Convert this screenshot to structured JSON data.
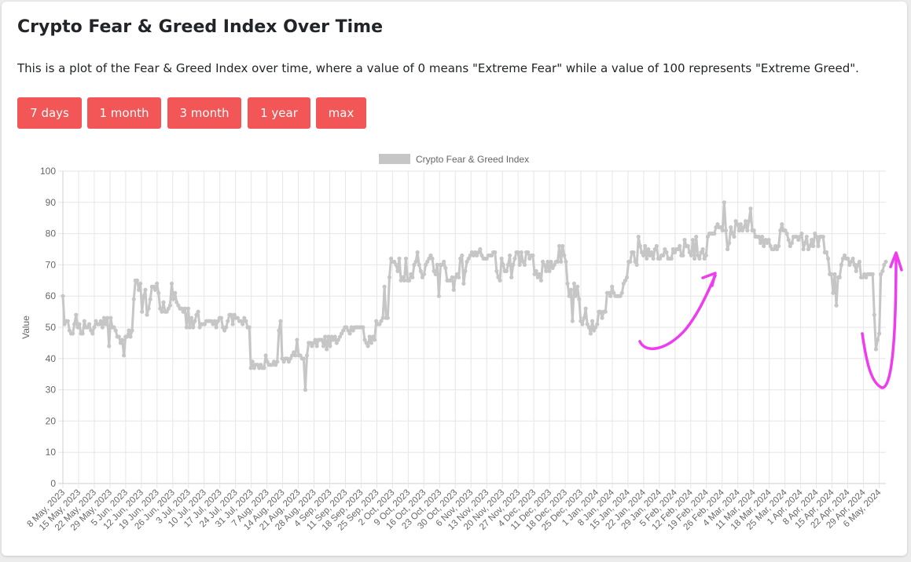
{
  "page": {
    "title": "Crypto Fear & Greed Index Over Time",
    "subtitle": "This is a plot of the Fear & Greed Index over time, where a value of 0 means \"Extreme Fear\" while a value of 100 represents \"Extreme Greed\".",
    "buttons": [
      "7 days",
      "1 month",
      "3 month",
      "1 year",
      "max"
    ]
  },
  "colors": {
    "accent": "#f25656",
    "line": "#c6c6c6",
    "grid": "#e6e6e6",
    "annotation": "#ee3cee"
  },
  "chart_data": {
    "type": "line",
    "title": "",
    "xlabel": "",
    "ylabel": "Value",
    "ylim": [
      0,
      100
    ],
    "yticks": [
      0,
      10,
      20,
      30,
      40,
      50,
      60,
      70,
      80,
      90,
      100
    ],
    "grid": true,
    "legend": "top-center",
    "x_start": "2023-05-08",
    "x_end": "2024-05-09",
    "x_tick_labels": [
      "8 May, 2023",
      "15 May, 2023",
      "22 May, 2023",
      "29 May, 2023",
      "5 Jun, 2023",
      "12 Jun, 2023",
      "19 Jun, 2023",
      "26 Jun, 2023",
      "3 Jul, 2023",
      "10 Jul, 2023",
      "17 Jul, 2023",
      "24 Jul, 2023",
      "31 Jul, 2023",
      "7 Aug, 2023",
      "14 Aug, 2023",
      "21 Aug, 2023",
      "28 Aug, 2023",
      "4 Sep, 2023",
      "11 Sep, 2023",
      "18 Sep, 2023",
      "25 Sep, 2023",
      "2 Oct, 2023",
      "9 Oct, 2023",
      "16 Oct, 2023",
      "23 Oct, 2023",
      "30 Oct, 2023",
      "6 Nov, 2023",
      "13 Nov, 2023",
      "20 Nov, 2023",
      "27 Nov, 2023",
      "4 Dec, 2023",
      "11 Dec, 2023",
      "18 Dec, 2023",
      "25 Dec, 2023",
      "1 Jan, 2024",
      "8 Jan, 2024",
      "15 Jan, 2024",
      "22 Jan, 2024",
      "29 Jan, 2024",
      "5 Feb, 2024",
      "12 Feb, 2024",
      "19 Feb, 2024",
      "26 Feb, 2024",
      "4 Mar, 2024",
      "11 Mar, 2024",
      "18 Mar, 2024",
      "25 Mar, 2024",
      "1 Apr, 2024",
      "8 Apr, 2024",
      "15 Apr, 2024",
      "22 Apr, 2024",
      "29 Apr, 2024",
      "6 May, 2024"
    ],
    "series": [
      {
        "name": "Crypto Fear & Greed Index",
        "values": [
          60,
          51,
          52,
          52,
          49,
          48,
          48,
          51,
          54,
          50,
          51,
          48,
          48,
          52,
          50,
          50,
          51,
          49,
          48,
          50,
          52,
          51,
          51,
          52,
          50,
          53,
          51,
          53,
          44,
          53,
          50,
          50,
          49,
          47,
          47,
          45,
          46,
          41,
          47,
          47,
          49,
          47,
          49,
          59,
          65,
          65,
          62,
          64,
          55,
          60,
          62,
          54,
          56,
          59,
          63,
          63,
          62,
          64,
          61,
          56,
          55,
          58,
          55,
          55,
          56,
          57,
          64,
          59,
          61,
          58,
          57,
          56,
          56,
          55,
          56,
          50,
          56,
          50,
          53,
          50,
          52,
          54,
          55,
          50,
          51,
          51,
          51,
          52,
          52,
          52,
          52,
          51,
          52,
          50,
          52,
          53,
          53,
          50,
          49,
          50,
          52,
          54,
          54,
          51,
          54,
          53,
          53,
          52,
          52,
          51,
          53,
          52,
          50,
          50,
          37,
          39,
          37,
          38,
          38,
          37,
          38,
          37,
          37,
          41,
          39,
          38,
          38,
          38,
          39,
          38,
          39,
          49,
          52,
          40,
          39,
          40,
          40,
          39,
          40,
          41,
          42,
          41,
          46,
          41,
          41,
          40,
          40,
          30,
          41,
          45,
          45,
          44,
          45,
          46,
          44,
          46,
          46,
          46,
          44,
          47,
          43,
          47,
          44,
          47,
          46,
          47,
          45,
          46,
          47,
          48,
          49,
          50,
          50,
          49,
          48,
          50,
          49,
          50,
          50,
          50,
          50,
          50,
          50,
          46,
          45,
          44,
          47,
          45,
          47,
          46,
          52,
          51,
          51,
          52,
          53,
          63,
          53,
          53,
          66,
          72,
          71,
          71,
          70,
          68,
          72,
          65,
          66,
          65,
          72,
          65,
          65,
          67,
          66,
          70,
          71,
          74,
          70,
          68,
          66,
          67,
          70,
          71,
          72,
          73,
          72,
          68,
          67,
          70,
          60,
          70,
          70,
          71,
          69,
          65,
          65,
          65,
          66,
          62,
          66,
          67,
          66,
          72,
          73,
          64,
          68,
          71,
          72,
          73,
          74,
          73,
          74,
          73,
          74,
          75,
          73,
          72,
          72,
          72,
          73,
          73,
          73,
          74,
          74,
          68,
          66,
          65,
          72,
          70,
          68,
          68,
          70,
          73,
          66,
          70,
          72,
          74,
          74,
          70,
          74,
          71,
          70,
          74,
          74,
          72,
          73,
          73,
          67,
          68,
          66,
          67,
          65,
          71,
          70,
          68,
          71,
          68,
          71,
          69,
          70,
          71,
          71,
          76,
          71,
          76,
          73,
          71,
          64,
          60,
          62,
          52,
          64,
          60,
          63,
          59,
          52,
          51,
          53,
          56,
          51,
          50,
          48,
          52,
          49,
          50,
          51,
          55,
          55,
          53,
          55,
          55,
          61,
          61,
          60,
          63,
          61,
          60,
          60,
          60,
          60,
          61,
          64,
          65,
          66,
          71,
          71,
          74,
          74,
          71,
          70,
          79,
          76,
          74,
          73,
          76,
          72,
          75,
          73,
          74,
          72,
          75,
          76,
          72,
          72,
          73,
          73,
          75,
          74,
          72,
          72,
          72,
          75,
          74,
          75,
          75,
          76,
          73,
          73,
          78,
          76,
          76,
          74,
          73,
          78,
          72,
          79,
          73,
          72,
          74,
          75,
          72,
          73,
          79,
          80,
          80,
          80,
          80,
          82,
          83,
          82,
          82,
          81,
          90,
          81,
          75,
          77,
          82,
          80,
          79,
          84,
          83,
          81,
          83,
          81,
          82,
          84,
          81,
          84,
          88,
          81,
          81,
          79,
          79,
          79,
          77,
          79,
          76,
          78,
          77,
          78,
          76,
          75,
          75,
          76,
          75,
          76,
          81,
          83,
          81,
          81,
          80,
          78,
          76,
          77,
          79,
          79,
          79,
          78,
          79,
          80,
          75,
          77,
          79,
          75,
          76,
          78,
          76,
          80,
          79,
          76,
          79,
          79,
          79,
          74,
          74,
          72,
          67,
          67,
          61,
          67,
          57,
          66,
          66,
          70,
          72,
          73,
          72,
          72,
          70,
          71,
          72,
          70,
          68,
          70,
          71,
          66,
          66,
          67,
          66,
          67,
          67,
          67,
          67,
          54,
          43,
          46,
          48,
          67,
          68,
          70,
          71
        ]
      }
    ]
  }
}
